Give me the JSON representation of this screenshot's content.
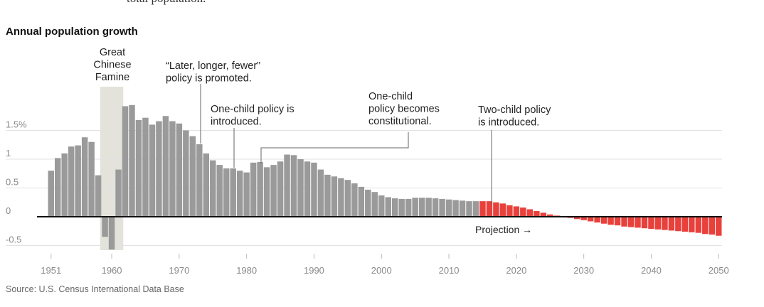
{
  "cut_off_text": "total population.",
  "chart_data": {
    "type": "bar",
    "title": "Annual population growth",
    "source": "Source: U.S. Census International Data Base",
    "ylim": [
      -0.6,
      1.9
    ],
    "y_ticks": [
      {
        "value": 1.5,
        "label": "1.5%"
      },
      {
        "value": 1,
        "label": "1"
      },
      {
        "value": 0.5,
        "label": "0.5"
      },
      {
        "value": 0,
        "label": "0"
      },
      {
        "value": -0.5,
        "label": "-0.5"
      }
    ],
    "x_ticks": [
      1951,
      1960,
      1970,
      1980,
      1990,
      2000,
      2010,
      2020,
      2030,
      2040,
      2050
    ],
    "x_range": [
      1951,
      2050
    ],
    "grid": true,
    "colors": {
      "historical": "#9a9a9a",
      "projection": "#e8413c",
      "famine_band": "#e3e3dc",
      "zero_line": "#111111"
    },
    "series": [
      {
        "name": "",
        "x": [
          1951,
          1952,
          1953,
          1954,
          1955,
          1956,
          1957,
          1958,
          1959,
          1960,
          1961,
          1962,
          1963,
          1964,
          1965,
          1966,
          1967,
          1968,
          1969,
          1970,
          1971,
          1972,
          1973,
          1974,
          1975,
          1976,
          1977,
          1978,
          1979,
          1980,
          1981,
          1982,
          1983,
          1984,
          1985,
          1986,
          1987,
          1988,
          1989,
          1990,
          1991,
          1992,
          1993,
          1994,
          1995,
          1996,
          1997,
          1998,
          1999,
          2000,
          2001,
          2002,
          2003,
          2004,
          2005,
          2006,
          2007,
          2008,
          2009,
          2010,
          2011,
          2012,
          2013,
          2014
        ],
        "values": [
          0.8,
          1.02,
          1.1,
          1.22,
          1.24,
          1.38,
          1.3,
          0.72,
          -0.35,
          -0.57,
          0.82,
          1.92,
          1.94,
          1.68,
          1.72,
          1.6,
          1.66,
          1.75,
          1.66,
          1.62,
          1.5,
          1.4,
          1.26,
          1.1,
          0.98,
          0.9,
          0.84,
          0.84,
          0.8,
          0.77,
          0.94,
          0.95,
          0.86,
          0.9,
          0.96,
          1.08,
          1.07,
          1.0,
          0.96,
          0.94,
          0.82,
          0.73,
          0.7,
          0.67,
          0.64,
          0.58,
          0.52,
          0.47,
          0.43,
          0.37,
          0.34,
          0.32,
          0.31,
          0.31,
          0.33,
          0.33,
          0.33,
          0.32,
          0.31,
          0.3,
          0.29,
          0.28,
          0.27,
          0.27
        ]
      },
      {
        "name": "Projection",
        "x": [
          2015,
          2016,
          2017,
          2018,
          2019,
          2020,
          2021,
          2022,
          2023,
          2024,
          2025,
          2026,
          2027,
          2028,
          2029,
          2030,
          2031,
          2032,
          2033,
          2034,
          2035,
          2036,
          2037,
          2038,
          2039,
          2040,
          2041,
          2042,
          2043,
          2044,
          2045,
          2046,
          2047,
          2048,
          2049,
          2050
        ],
        "values": [
          0.27,
          0.27,
          0.25,
          0.23,
          0.2,
          0.18,
          0.16,
          0.13,
          0.1,
          0.07,
          0.04,
          0.02,
          0.0,
          -0.02,
          -0.04,
          -0.06,
          -0.08,
          -0.1,
          -0.12,
          -0.14,
          -0.15,
          -0.17,
          -0.18,
          -0.19,
          -0.2,
          -0.21,
          -0.22,
          -0.23,
          -0.24,
          -0.25,
          -0.26,
          -0.27,
          -0.28,
          -0.3,
          -0.31,
          -0.33
        ]
      }
    ],
    "highlight_band": {
      "from": 1959,
      "to": 1961
    },
    "annotations": [
      {
        "lines": [
          "Great",
          "Chinese",
          "Famine"
        ],
        "year": 1960,
        "align": "middle"
      },
      {
        "lines": [
          "“Later, longer, fewer”",
          "policy is promoted."
        ],
        "year": 1973
      },
      {
        "lines": [
          "One-child policy is",
          "introduced."
        ],
        "year": 1979
      },
      {
        "lines": [
          "One-child",
          "policy becomes",
          "constitutional."
        ],
        "year": 1982
      },
      {
        "lines": [
          "Two-child policy",
          "is introduced."
        ],
        "year": 2016
      }
    ],
    "projection_label": "Projection →"
  }
}
